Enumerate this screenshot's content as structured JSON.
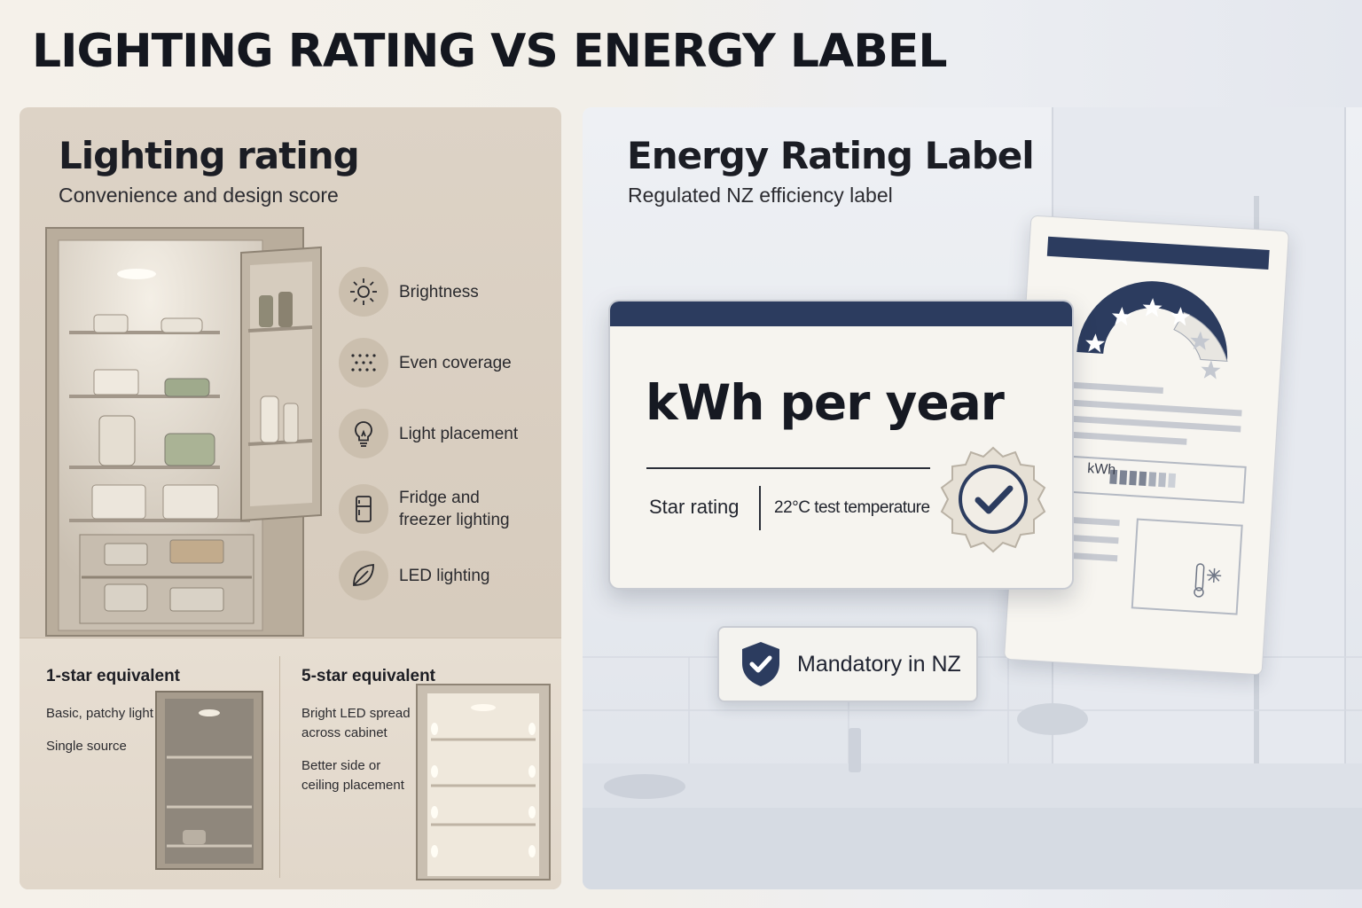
{
  "title": "LIGHTING RATING VS ENERGY LABEL",
  "left": {
    "heading": "Lighting rating",
    "subheading": "Convenience and design score",
    "features": [
      {
        "icon": "sun-icon",
        "label": "Brightness"
      },
      {
        "icon": "dots-icon",
        "label": "Even coverage"
      },
      {
        "icon": "lightbulb-icon",
        "label": "Light placement"
      },
      {
        "icon": "fridge-icon",
        "label": "Fridge and\nfreezer lighting"
      },
      {
        "icon": "leaf-icon",
        "label": "LED lighting"
      }
    ],
    "one_star": {
      "heading": "1-star equivalent",
      "lines": [
        "Basic, patchy light",
        "Single source"
      ]
    },
    "five_star": {
      "heading": "5-star equivalent",
      "lines": [
        "Bright LED spread\nacross cabinet",
        "Better side or\nceiling placement"
      ]
    }
  },
  "right": {
    "heading": "Energy Rating Label",
    "subheading": "Regulated NZ efficiency label",
    "label_main": "kWh per year",
    "label_left": "Star rating",
    "label_right": "22°C test temperature",
    "back_label_kwh": "kWh",
    "badge": "Mandatory in NZ"
  },
  "colors": {
    "navy": "#2c3c5f",
    "beige_panel": "#d8cdbf",
    "grey_panel": "#e8ebf0"
  }
}
